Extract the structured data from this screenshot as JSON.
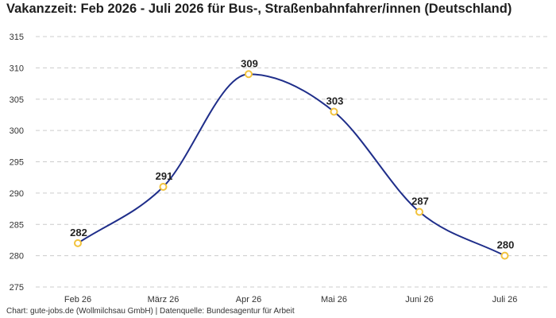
{
  "title": "Vakanzzeit: Feb 2026 - Juli 2026 für Bus-, Straßenbahnfahrer/innen (Deutschland)",
  "source": "Chart: gute-jobs.de (Wollmilchsau GmbH) | Datenquelle: Bundesagentur für Arbeit",
  "colors": {
    "line": "#1f2e8a",
    "marker": "#f2c33d",
    "grid": "#cccccc"
  },
  "chart_data": {
    "type": "line",
    "title": "Vakanzzeit: Feb 2026 - Juli 2026 für Bus-, Straßenbahnfahrer/innen (Deutschland)",
    "xlabel": "",
    "ylabel": "",
    "categories": [
      "Feb 26",
      "März 26",
      "Apr 26",
      "Mai 26",
      "Juni 26",
      "Juli 26"
    ],
    "values": [
      282,
      291,
      309,
      303,
      287,
      280
    ],
    "ylim": [
      275,
      315
    ],
    "yticks": [
      275,
      280,
      285,
      290,
      295,
      300,
      305,
      310,
      315
    ],
    "grid": true,
    "smooth": true,
    "data_labels": true
  }
}
